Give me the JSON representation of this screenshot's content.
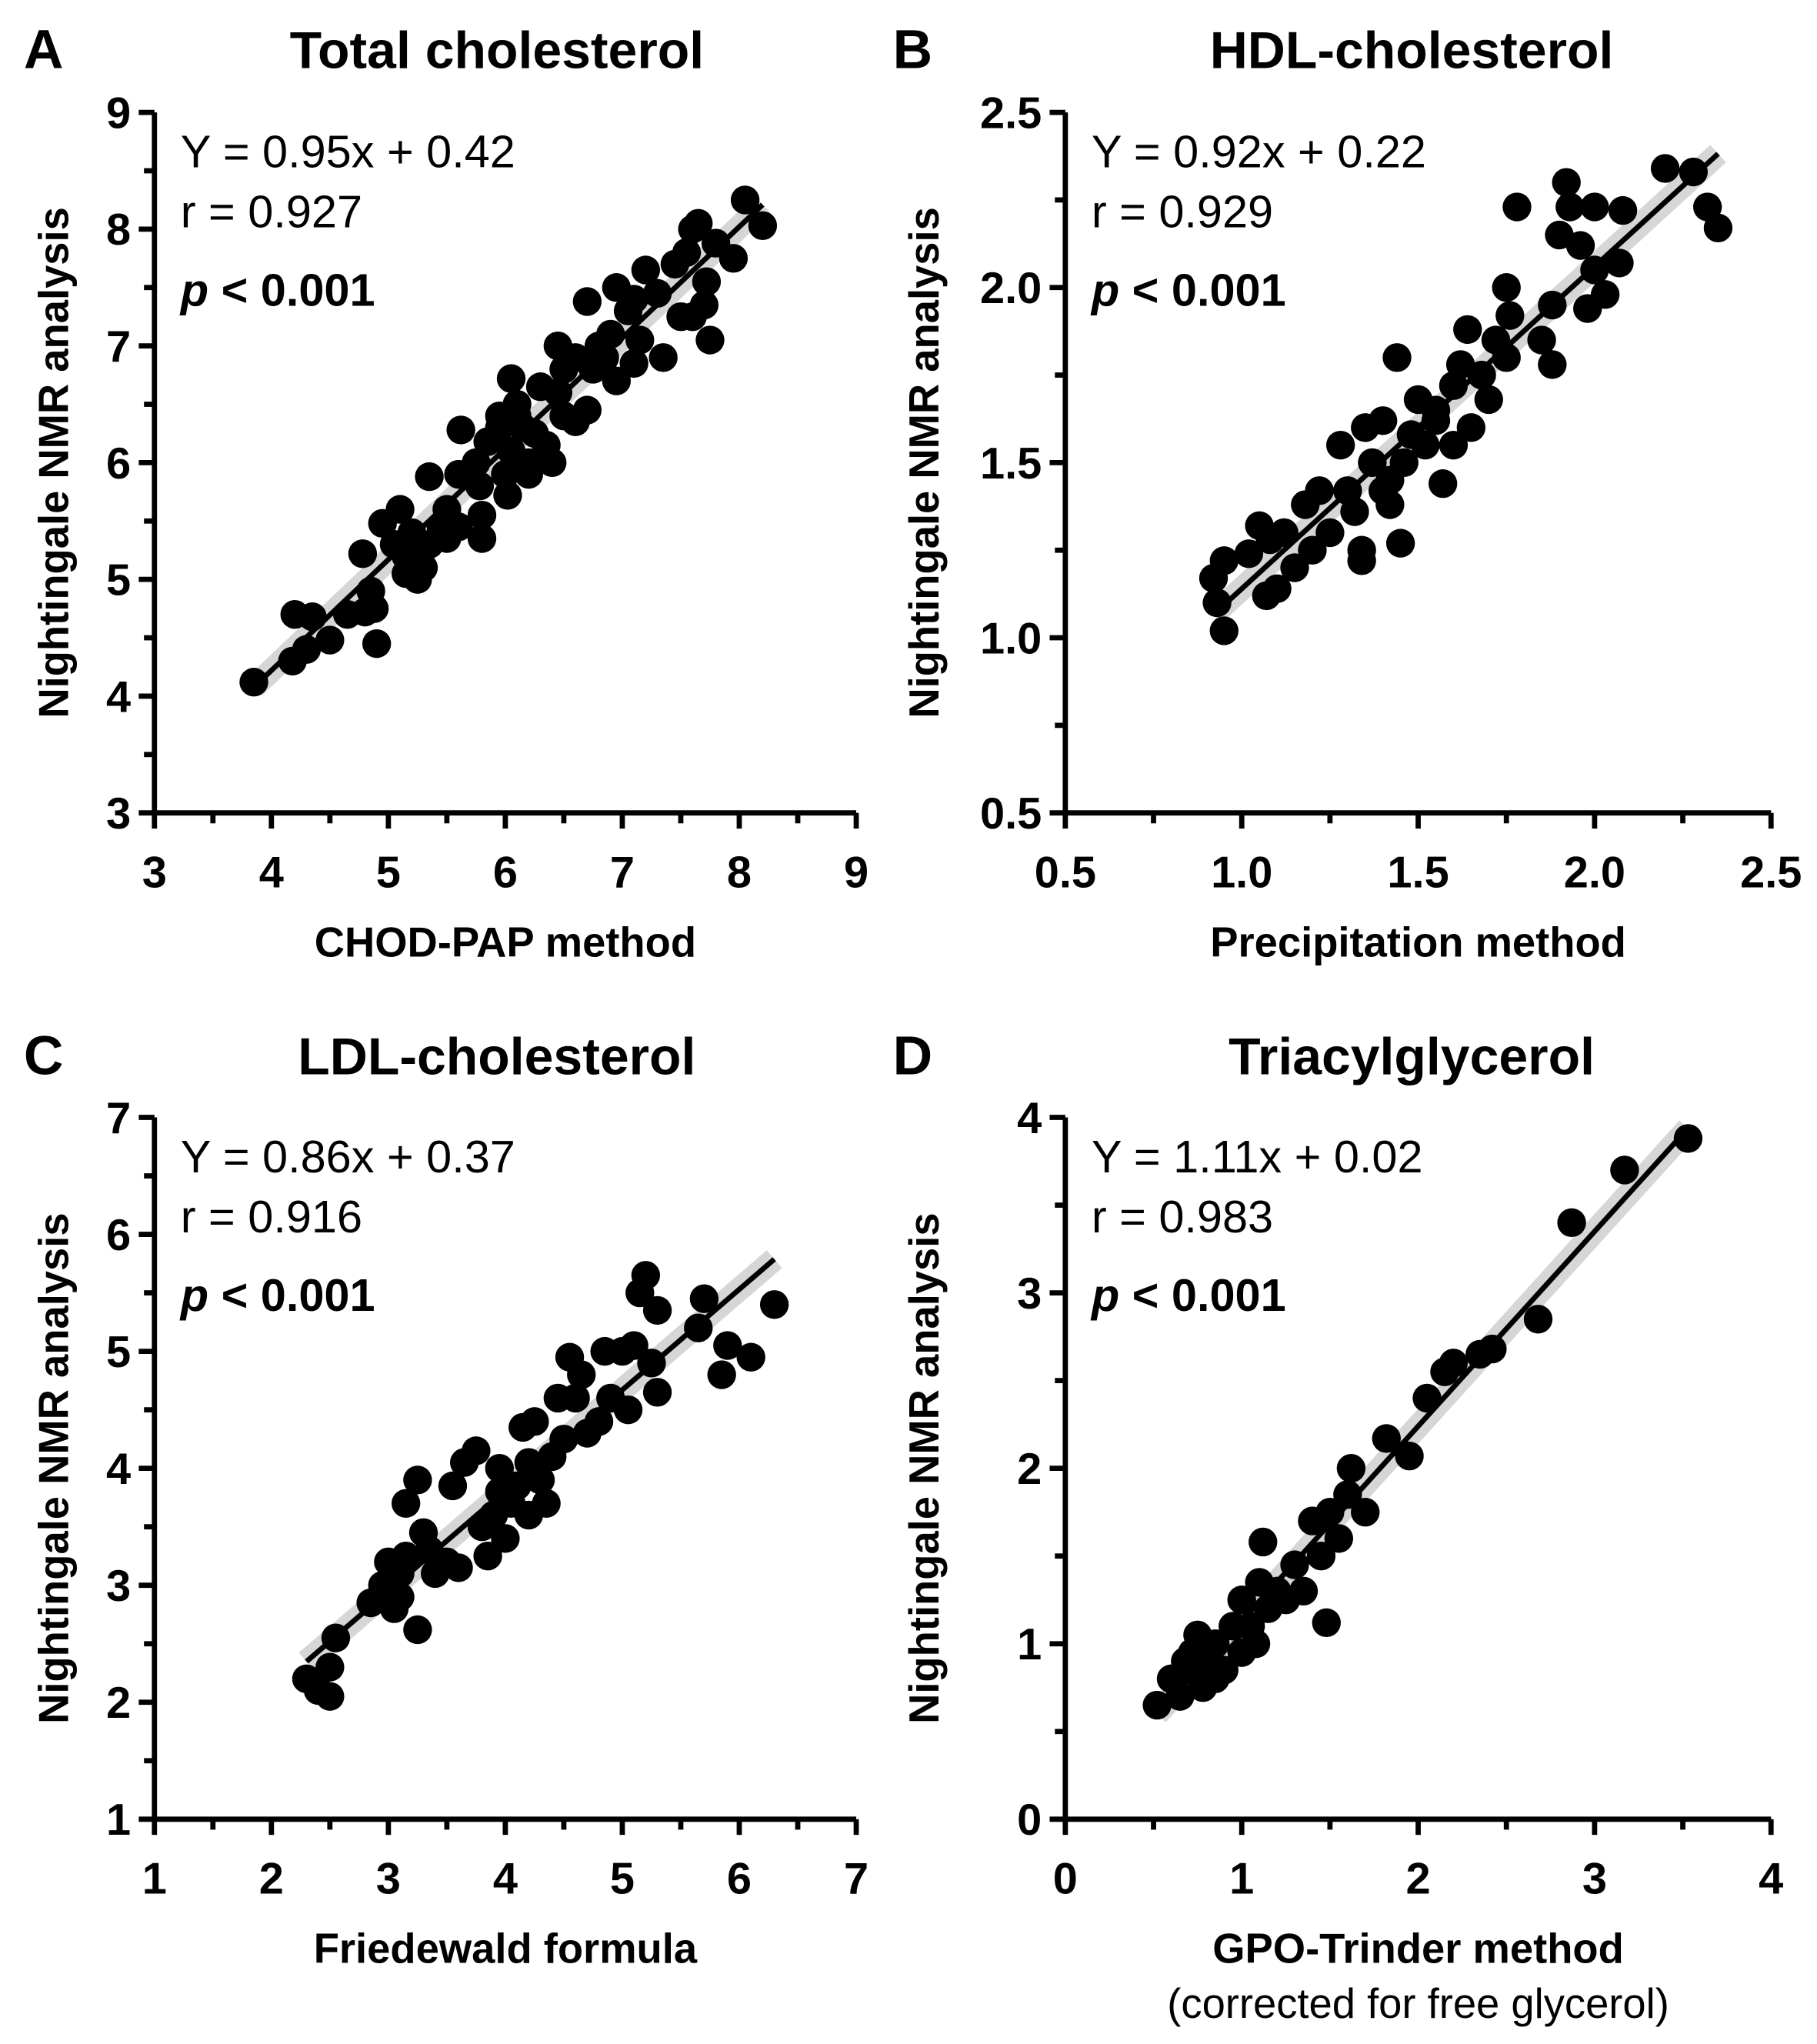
{
  "chart_data": [
    {
      "type": "scatter",
      "panel": "A",
      "title": "Total cholesterol",
      "xlabel": "CHOD-PAP method",
      "ylabel": "Nightingale NMR analysis",
      "xlim": [
        3,
        9
      ],
      "ylim": [
        3,
        9
      ],
      "xticks": [
        "3",
        "4",
        "5",
        "6",
        "7",
        "8",
        "9"
      ],
      "yticks": [
        "3",
        "4",
        "5",
        "6",
        "7",
        "8",
        "9"
      ],
      "equation": "Y = 0.95x + 0.42",
      "r": "r = 0.927",
      "p_symbol": "p",
      "p_value": "< 0.001",
      "fit": {
        "slope": 0.95,
        "intercept": 0.42,
        "xrange": [
          3.85,
          8.2
        ]
      },
      "points": [
        [
          3.85,
          4.12
        ],
        [
          4.18,
          4.3
        ],
        [
          4.2,
          4.7
        ],
        [
          4.3,
          4.4
        ],
        [
          4.35,
          4.68
        ],
        [
          4.5,
          4.48
        ],
        [
          4.65,
          4.7
        ],
        [
          4.8,
          4.72
        ],
        [
          4.78,
          5.22
        ],
        [
          4.85,
          4.9
        ],
        [
          4.9,
          4.45
        ],
        [
          4.88,
          4.75
        ],
        [
          4.95,
          5.48
        ],
        [
          5.05,
          5.3
        ],
        [
          5.1,
          5.6
        ],
        [
          5.15,
          5.2
        ],
        [
          5.2,
          5.4
        ],
        [
          5.15,
          5.05
        ],
        [
          5.25,
          5.0
        ],
        [
          5.3,
          5.1
        ],
        [
          5.35,
          5.3
        ],
        [
          5.35,
          5.88
        ],
        [
          5.45,
          5.45
        ],
        [
          5.5,
          5.6
        ],
        [
          5.6,
          5.45
        ],
        [
          5.6,
          5.9
        ],
        [
          5.62,
          6.28
        ],
        [
          5.75,
          6.0
        ],
        [
          5.8,
          5.35
        ],
        [
          5.8,
          5.55
        ],
        [
          5.78,
          5.8
        ],
        [
          5.85,
          6.18
        ],
        [
          5.95,
          6.4
        ],
        [
          6.0,
          5.9
        ],
        [
          6.05,
          6.1
        ],
        [
          6.02,
          5.72
        ],
        [
          6.05,
          6.72
        ],
        [
          6.1,
          6.5
        ],
        [
          6.15,
          6.3
        ],
        [
          6.2,
          6.0
        ],
        [
          6.2,
          5.9
        ],
        [
          6.25,
          6.25
        ],
        [
          6.3,
          6.65
        ],
        [
          6.35,
          6.15
        ],
        [
          6.45,
          6.6
        ],
        [
          6.45,
          7.0
        ],
        [
          6.5,
          6.8
        ],
        [
          6.5,
          6.4
        ],
        [
          6.6,
          6.35
        ],
        [
          6.7,
          6.45
        ],
        [
          6.7,
          7.38
        ],
        [
          6.75,
          6.8
        ],
        [
          6.8,
          7.0
        ],
        [
          6.85,
          6.9
        ],
        [
          6.9,
          7.1
        ],
        [
          6.95,
          6.7
        ],
        [
          6.95,
          7.5
        ],
        [
          7.05,
          7.3
        ],
        [
          7.1,
          7.4
        ],
        [
          7.1,
          6.85
        ],
        [
          7.15,
          7.05
        ],
        [
          7.2,
          7.65
        ],
        [
          7.3,
          7.45
        ],
        [
          7.35,
          6.9
        ],
        [
          7.45,
          7.7
        ],
        [
          7.5,
          7.25
        ],
        [
          7.55,
          7.8
        ],
        [
          7.6,
          7.25
        ],
        [
          7.6,
          8.0
        ],
        [
          7.65,
          8.05
        ],
        [
          7.7,
          7.35
        ],
        [
          7.72,
          7.55
        ],
        [
          7.75,
          7.05
        ],
        [
          7.8,
          7.88
        ],
        [
          7.95,
          7.75
        ],
        [
          8.05,
          8.25
        ],
        [
          8.2,
          8.03
        ],
        [
          6.6,
          6.9
        ],
        [
          5.95,
          6.3
        ],
        [
          6.1,
          6.4
        ],
        [
          5.5,
          5.35
        ],
        [
          6.4,
          6.0
        ]
      ]
    },
    {
      "type": "scatter",
      "panel": "B",
      "title": "HDL-cholesterol",
      "xlabel": "Precipitation method",
      "ylabel": "Nightingale NMR analysis",
      "xlim": [
        0.5,
        2.5
      ],
      "ylim": [
        0.5,
        2.5
      ],
      "xticks": [
        "0.5",
        "1.0",
        "1.5",
        "2.0",
        "2.5"
      ],
      "yticks": [
        "0.5",
        "1.0",
        "1.5",
        "2.0",
        "2.5"
      ],
      "equation": "Y = 0.92x + 0.22",
      "r": "r = 0.929",
      "p_symbol": "p",
      "p_value": "< 0.001",
      "fit": {
        "slope": 0.92,
        "intercept": 0.22,
        "xrange": [
          0.92,
          2.35
        ]
      },
      "points": [
        [
          0.92,
          1.17
        ],
        [
          0.93,
          1.1
        ],
        [
          0.95,
          1.02
        ],
        [
          0.95,
          1.22
        ],
        [
          1.02,
          1.24
        ],
        [
          1.05,
          1.32
        ],
        [
          1.07,
          1.12
        ],
        [
          1.08,
          1.28
        ],
        [
          1.1,
          1.14
        ],
        [
          1.12,
          1.3
        ],
        [
          1.15,
          1.2
        ],
        [
          1.18,
          1.38
        ],
        [
          1.2,
          1.25
        ],
        [
          1.22,
          1.42
        ],
        [
          1.25,
          1.3
        ],
        [
          1.28,
          1.55
        ],
        [
          1.3,
          1.42
        ],
        [
          1.32,
          1.36
        ],
        [
          1.34,
          1.25
        ],
        [
          1.34,
          1.22
        ],
        [
          1.35,
          1.6
        ],
        [
          1.37,
          1.5
        ],
        [
          1.4,
          1.62
        ],
        [
          1.42,
          1.45
        ],
        [
          1.42,
          1.38
        ],
        [
          1.44,
          1.8
        ],
        [
          1.45,
          1.27
        ],
        [
          1.46,
          1.5
        ],
        [
          1.48,
          1.58
        ],
        [
          1.5,
          1.68
        ],
        [
          1.52,
          1.55
        ],
        [
          1.55,
          1.62
        ],
        [
          1.57,
          1.44
        ],
        [
          1.6,
          1.72
        ],
        [
          1.62,
          1.78
        ],
        [
          1.64,
          1.88
        ],
        [
          1.65,
          1.6
        ],
        [
          1.68,
          1.75
        ],
        [
          1.7,
          1.68
        ],
        [
          1.72,
          1.85
        ],
        [
          1.75,
          1.8
        ],
        [
          1.76,
          1.92
        ],
        [
          1.78,
          2.23
        ],
        [
          1.75,
          2.0
        ],
        [
          1.85,
          1.85
        ],
        [
          1.88,
          1.78
        ],
        [
          1.88,
          1.95
        ],
        [
          1.9,
          2.15
        ],
        [
          1.92,
          2.3
        ],
        [
          1.93,
          2.23
        ],
        [
          1.96,
          2.12
        ],
        [
          1.98,
          1.94
        ],
        [
          2.0,
          2.05
        ],
        [
          2.0,
          2.23
        ],
        [
          2.03,
          1.98
        ],
        [
          2.07,
          2.07
        ],
        [
          2.08,
          2.22
        ],
        [
          2.2,
          2.34
        ],
        [
          2.28,
          2.33
        ],
        [
          2.32,
          2.23
        ],
        [
          2.35,
          2.17
        ],
        [
          1.55,
          1.65
        ],
        [
          1.6,
          1.55
        ],
        [
          1.4,
          1.42
        ]
      ]
    },
    {
      "type": "scatter",
      "panel": "C",
      "title": "LDL-cholesterol",
      "xlabel": "Friedewald formula",
      "ylabel": "Nightingale NMR analysis",
      "xlim": [
        1,
        7
      ],
      "ylim": [
        1,
        7
      ],
      "xticks": [
        "1",
        "2",
        "3",
        "4",
        "5",
        "6",
        "7"
      ],
      "yticks": [
        "1",
        "2",
        "3",
        "4",
        "5",
        "6",
        "7"
      ],
      "equation": "Y = 0.86x + 0.37",
      "r": "r = 0.916",
      "p_symbol": "p",
      "p_value": "< 0.001",
      "fit": {
        "slope": 0.86,
        "intercept": 0.37,
        "xrange": [
          2.3,
          6.3
        ]
      },
      "points": [
        [
          2.3,
          2.2
        ],
        [
          2.4,
          2.1
        ],
        [
          2.5,
          2.05
        ],
        [
          2.5,
          2.3
        ],
        [
          2.55,
          2.55
        ],
        [
          2.85,
          2.85
        ],
        [
          2.95,
          3.0
        ],
        [
          3.0,
          3.2
        ],
        [
          3.05,
          2.8
        ],
        [
          3.1,
          3.1
        ],
        [
          3.15,
          3.25
        ],
        [
          3.15,
          3.7
        ],
        [
          3.25,
          3.9
        ],
        [
          3.3,
          3.45
        ],
        [
          3.25,
          2.62
        ],
        [
          3.35,
          3.3
        ],
        [
          3.4,
          3.1
        ],
        [
          3.5,
          3.2
        ],
        [
          3.55,
          3.85
        ],
        [
          3.6,
          3.15
        ],
        [
          3.65,
          4.05
        ],
        [
          3.75,
          4.15
        ],
        [
          3.8,
          3.5
        ],
        [
          3.85,
          3.25
        ],
        [
          3.9,
          3.6
        ],
        [
          3.95,
          4.0
        ],
        [
          4.0,
          3.4
        ],
        [
          4.05,
          3.7
        ],
        [
          4.1,
          3.85
        ],
        [
          4.15,
          4.35
        ],
        [
          4.2,
          3.6
        ],
        [
          4.25,
          4.4
        ],
        [
          4.3,
          3.9
        ],
        [
          4.35,
          3.7
        ],
        [
          4.4,
          4.1
        ],
        [
          4.5,
          4.25
        ],
        [
          4.55,
          4.95
        ],
        [
          4.6,
          4.6
        ],
        [
          4.65,
          4.8
        ],
        [
          4.7,
          4.3
        ],
        [
          4.8,
          4.4
        ],
        [
          4.85,
          5.0
        ],
        [
          4.9,
          4.6
        ],
        [
          5.0,
          5.0
        ],
        [
          5.05,
          4.5
        ],
        [
          5.1,
          5.05
        ],
        [
          5.15,
          5.5
        ],
        [
          5.2,
          5.65
        ],
        [
          5.25,
          4.9
        ],
        [
          5.3,
          4.65
        ],
        [
          5.3,
          5.35
        ],
        [
          5.7,
          5.45
        ],
        [
          5.65,
          5.2
        ],
        [
          5.85,
          4.8
        ],
        [
          5.9,
          5.05
        ],
        [
          6.1,
          4.95
        ],
        [
          6.3,
          5.4
        ],
        [
          4.45,
          4.6
        ],
        [
          3.95,
          3.8
        ],
        [
          4.2,
          4.05
        ],
        [
          3.1,
          2.9
        ],
        [
          2.95,
          2.95
        ]
      ]
    },
    {
      "type": "scatter",
      "panel": "D",
      "title": "Triacylglycerol",
      "xlabel": "GPO-Trinder method",
      "xlabel_sub": "(corrected for free glycerol)",
      "ylabel": "Nightingale NMR analysis",
      "xlim": [
        0,
        4
      ],
      "ylim": [
        0,
        4
      ],
      "xticks": [
        "0",
        "1",
        "2",
        "3",
        "4"
      ],
      "yticks": [
        "0",
        "1",
        "2",
        "3",
        "4"
      ],
      "equation": "Y = 1.11x + 0.02",
      "r": "r = 0.983",
      "p_symbol": "p",
      "p_value": "< 0.001",
      "fit": {
        "slope": 1.11,
        "intercept": 0.02,
        "xrange": [
          0.52,
          3.53
        ]
      },
      "points": [
        [
          0.52,
          0.65
        ],
        [
          0.6,
          0.8
        ],
        [
          0.65,
          0.7
        ],
        [
          0.7,
          0.85
        ],
        [
          0.72,
          0.95
        ],
        [
          0.75,
          1.05
        ],
        [
          0.78,
          0.75
        ],
        [
          0.8,
          0.9
        ],
        [
          0.85,
          1.0
        ],
        [
          0.9,
          0.85
        ],
        [
          0.95,
          1.1
        ],
        [
          1.0,
          0.95
        ],
        [
          1.0,
          1.25
        ],
        [
          1.05,
          1.1
        ],
        [
          1.1,
          1.35
        ],
        [
          1.12,
          1.58
        ],
        [
          1.15,
          1.2
        ],
        [
          1.2,
          1.3
        ],
        [
          1.25,
          1.25
        ],
        [
          1.3,
          1.45
        ],
        [
          1.35,
          1.3
        ],
        [
          1.4,
          1.7
        ],
        [
          1.45,
          1.5
        ],
        [
          1.48,
          1.12
        ],
        [
          1.5,
          1.75
        ],
        [
          1.55,
          1.6
        ],
        [
          1.6,
          1.85
        ],
        [
          1.62,
          2.0
        ],
        [
          1.7,
          1.75
        ],
        [
          1.82,
          2.17
        ],
        [
          1.95,
          2.07
        ],
        [
          2.05,
          2.4
        ],
        [
          2.15,
          2.55
        ],
        [
          2.2,
          2.6
        ],
        [
          2.35,
          2.65
        ],
        [
          2.42,
          2.68
        ],
        [
          2.68,
          2.85
        ],
        [
          2.87,
          3.4
        ],
        [
          3.17,
          3.7
        ],
        [
          3.53,
          3.88
        ],
        [
          0.85,
          0.8
        ],
        [
          1.08,
          1.0
        ],
        [
          0.68,
          0.9
        ]
      ]
    }
  ]
}
